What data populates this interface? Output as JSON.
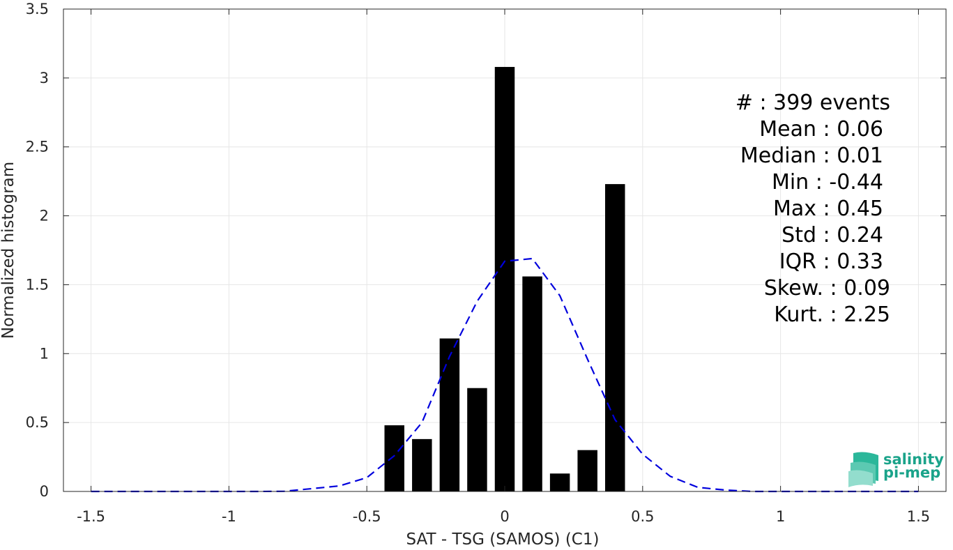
{
  "chart_data": {
    "type": "bar",
    "xlabel": "SAT - TSG (SAMOS) (C1)",
    "ylabel": "Normalized histogram",
    "xlim": [
      -1.6,
      1.6
    ],
    "ylim": [
      0,
      3.5
    ],
    "xticks": [
      -1.5,
      -1,
      -0.5,
      0,
      0.5,
      1,
      1.5
    ],
    "xtick_labels": [
      "-1.5",
      "-1",
      "-0.5",
      "0",
      "0.5",
      "1",
      "1.5"
    ],
    "yticks": [
      0,
      0.5,
      1,
      1.5,
      2,
      2.5,
      3,
      3.5
    ],
    "ytick_labels": [
      "0",
      "0.5",
      "1",
      "1.5",
      "2",
      "2.5",
      "3",
      "3.5"
    ],
    "grid": true,
    "bar_color": "#000000",
    "bars": {
      "x": [
        -0.4,
        -0.3,
        -0.2,
        -0.1,
        0.0,
        0.1,
        0.2,
        0.3,
        0.4
      ],
      "values": [
        0.48,
        0.38,
        1.11,
        0.75,
        3.08,
        1.56,
        0.13,
        0.3,
        2.23
      ]
    },
    "fit_curve": {
      "style": "dashed",
      "color": "#0000dd",
      "x": [
        -1.5,
        -1.4,
        -1.3,
        -1.2,
        -1.1,
        -1.0,
        -0.9,
        -0.8,
        -0.7,
        -0.6,
        -0.5,
        -0.4,
        -0.3,
        -0.2,
        -0.1,
        0.0,
        0.1,
        0.2,
        0.3,
        0.4,
        0.5,
        0.6,
        0.7,
        0.8,
        0.9,
        1.0,
        1.1,
        1.2,
        1.3,
        1.4,
        1.5
      ],
      "y": [
        0,
        0,
        0,
        0,
        0,
        0,
        0,
        0.001,
        0.02,
        0.04,
        0.1,
        0.26,
        0.5,
        0.98,
        1.38,
        1.67,
        1.69,
        1.42,
        0.96,
        0.52,
        0.27,
        0.11,
        0.03,
        0.01,
        0,
        0,
        0,
        0,
        0,
        0,
        0
      ]
    }
  },
  "stats": [
    {
      "label": "#  : 399 events"
    },
    {
      "label": "Mean : 0.06"
    },
    {
      "label": "Median : 0.01"
    },
    {
      "label": "Min : -0.44"
    },
    {
      "label": "Max : 0.45"
    },
    {
      "label": "Std : 0.24"
    },
    {
      "label": "IQR : 0.33"
    },
    {
      "label": "Skew. : 0.09"
    },
    {
      "label": "Kurt. : 2.25"
    }
  ],
  "logo": {
    "line1": "salinity",
    "line2": "pi-mep",
    "color": "#1aa38a"
  }
}
